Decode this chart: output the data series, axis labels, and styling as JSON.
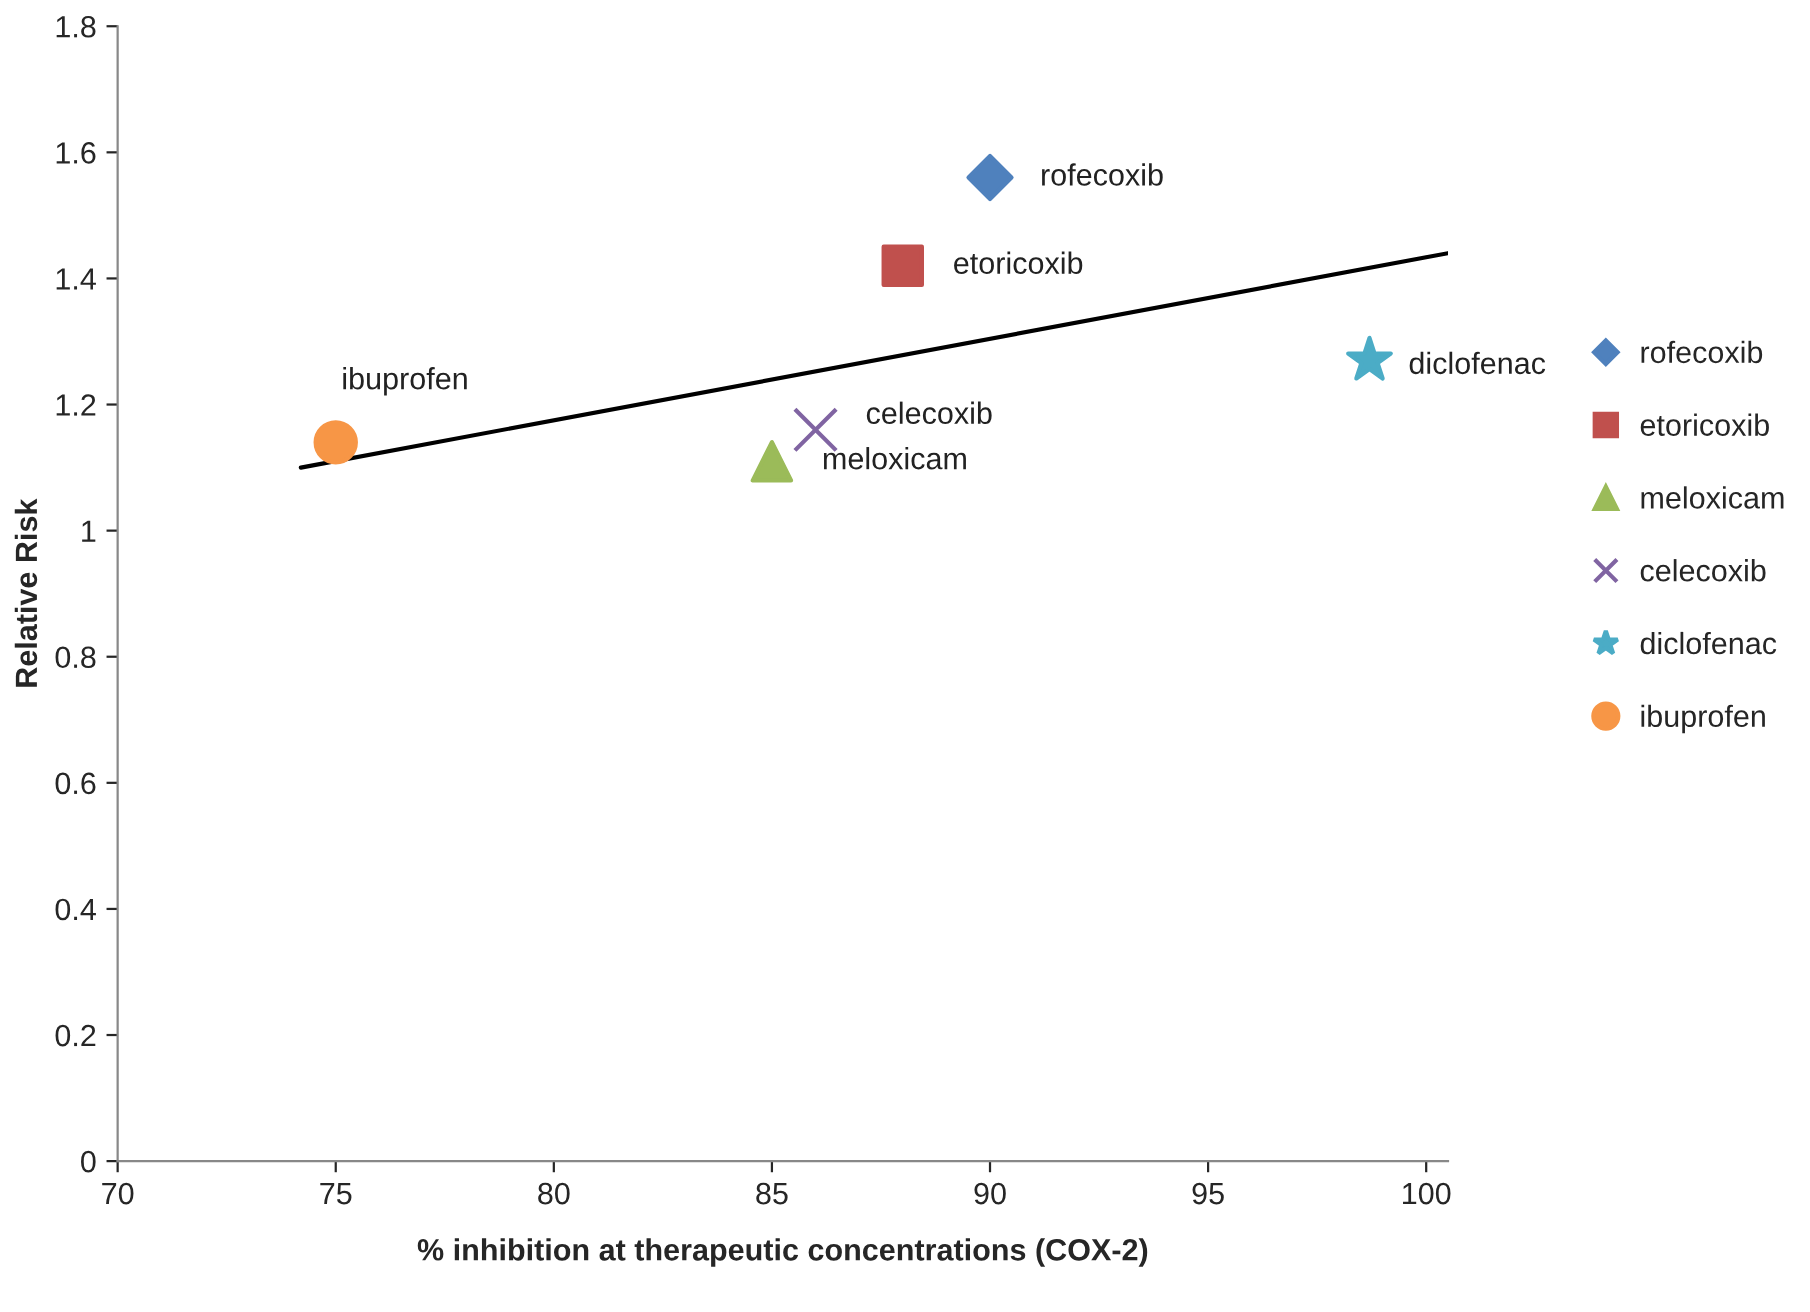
{
  "chart_data": {
    "type": "scatter",
    "xlabel": "% inhibition at therapeutic concentrations (COX-2)",
    "ylabel": "Relative Risk",
    "xlim": [
      70,
      100.5
    ],
    "xticks": [
      70,
      75,
      80,
      85,
      90,
      95,
      100
    ],
    "ylim": [
      0,
      1.8
    ],
    "yticks": [
      0,
      {
        "value": 0.2,
        "label": "0.2"
      },
      {
        "value": 0.4,
        "label": "0.4"
      },
      {
        "value": 0.6,
        "label": "0.6"
      },
      {
        "value": 0.8,
        "label": "0.8"
      },
      1,
      {
        "value": 1.2,
        "label": "1.2"
      },
      {
        "value": 1.4,
        "label": "1.4"
      },
      {
        "value": 1.6,
        "label": "1.6"
      },
      {
        "value": 1.8,
        "label": "1.8"
      }
    ],
    "grid": false,
    "legend": "right",
    "series": [
      {
        "name": "rofecoxib",
        "color": "#4f81bd",
        "marker": "diamond",
        "x": [
          90
        ],
        "values": [
          1.56
        ]
      },
      {
        "name": "etoricoxib",
        "color": "#c0504d",
        "marker": "square",
        "x": [
          88
        ],
        "values": [
          1.42
        ]
      },
      {
        "name": "meloxicam",
        "color": "#9bbb59",
        "marker": "triangle",
        "x": [
          85
        ],
        "values": [
          1.11
        ]
      },
      {
        "name": "celecoxib",
        "color": "#8064a2",
        "marker": "cross",
        "x": [
          86
        ],
        "values": [
          1.16
        ]
      },
      {
        "name": "diclofenac",
        "color": "#4bacc6",
        "marker": "star",
        "x": [
          98.7
        ],
        "values": [
          1.27
        ]
      },
      {
        "name": "ibuprofen",
        "color": "#f79646",
        "marker": "circle",
        "x": [
          75
        ],
        "values": [
          1.14
        ]
      },
      {
        "type": "line",
        "color": "#000000",
        "marker": "none",
        "line_style": "solid",
        "x": [
          74.2,
          100.5
        ],
        "values": [
          1.1,
          1.44
        ]
      }
    ]
  }
}
